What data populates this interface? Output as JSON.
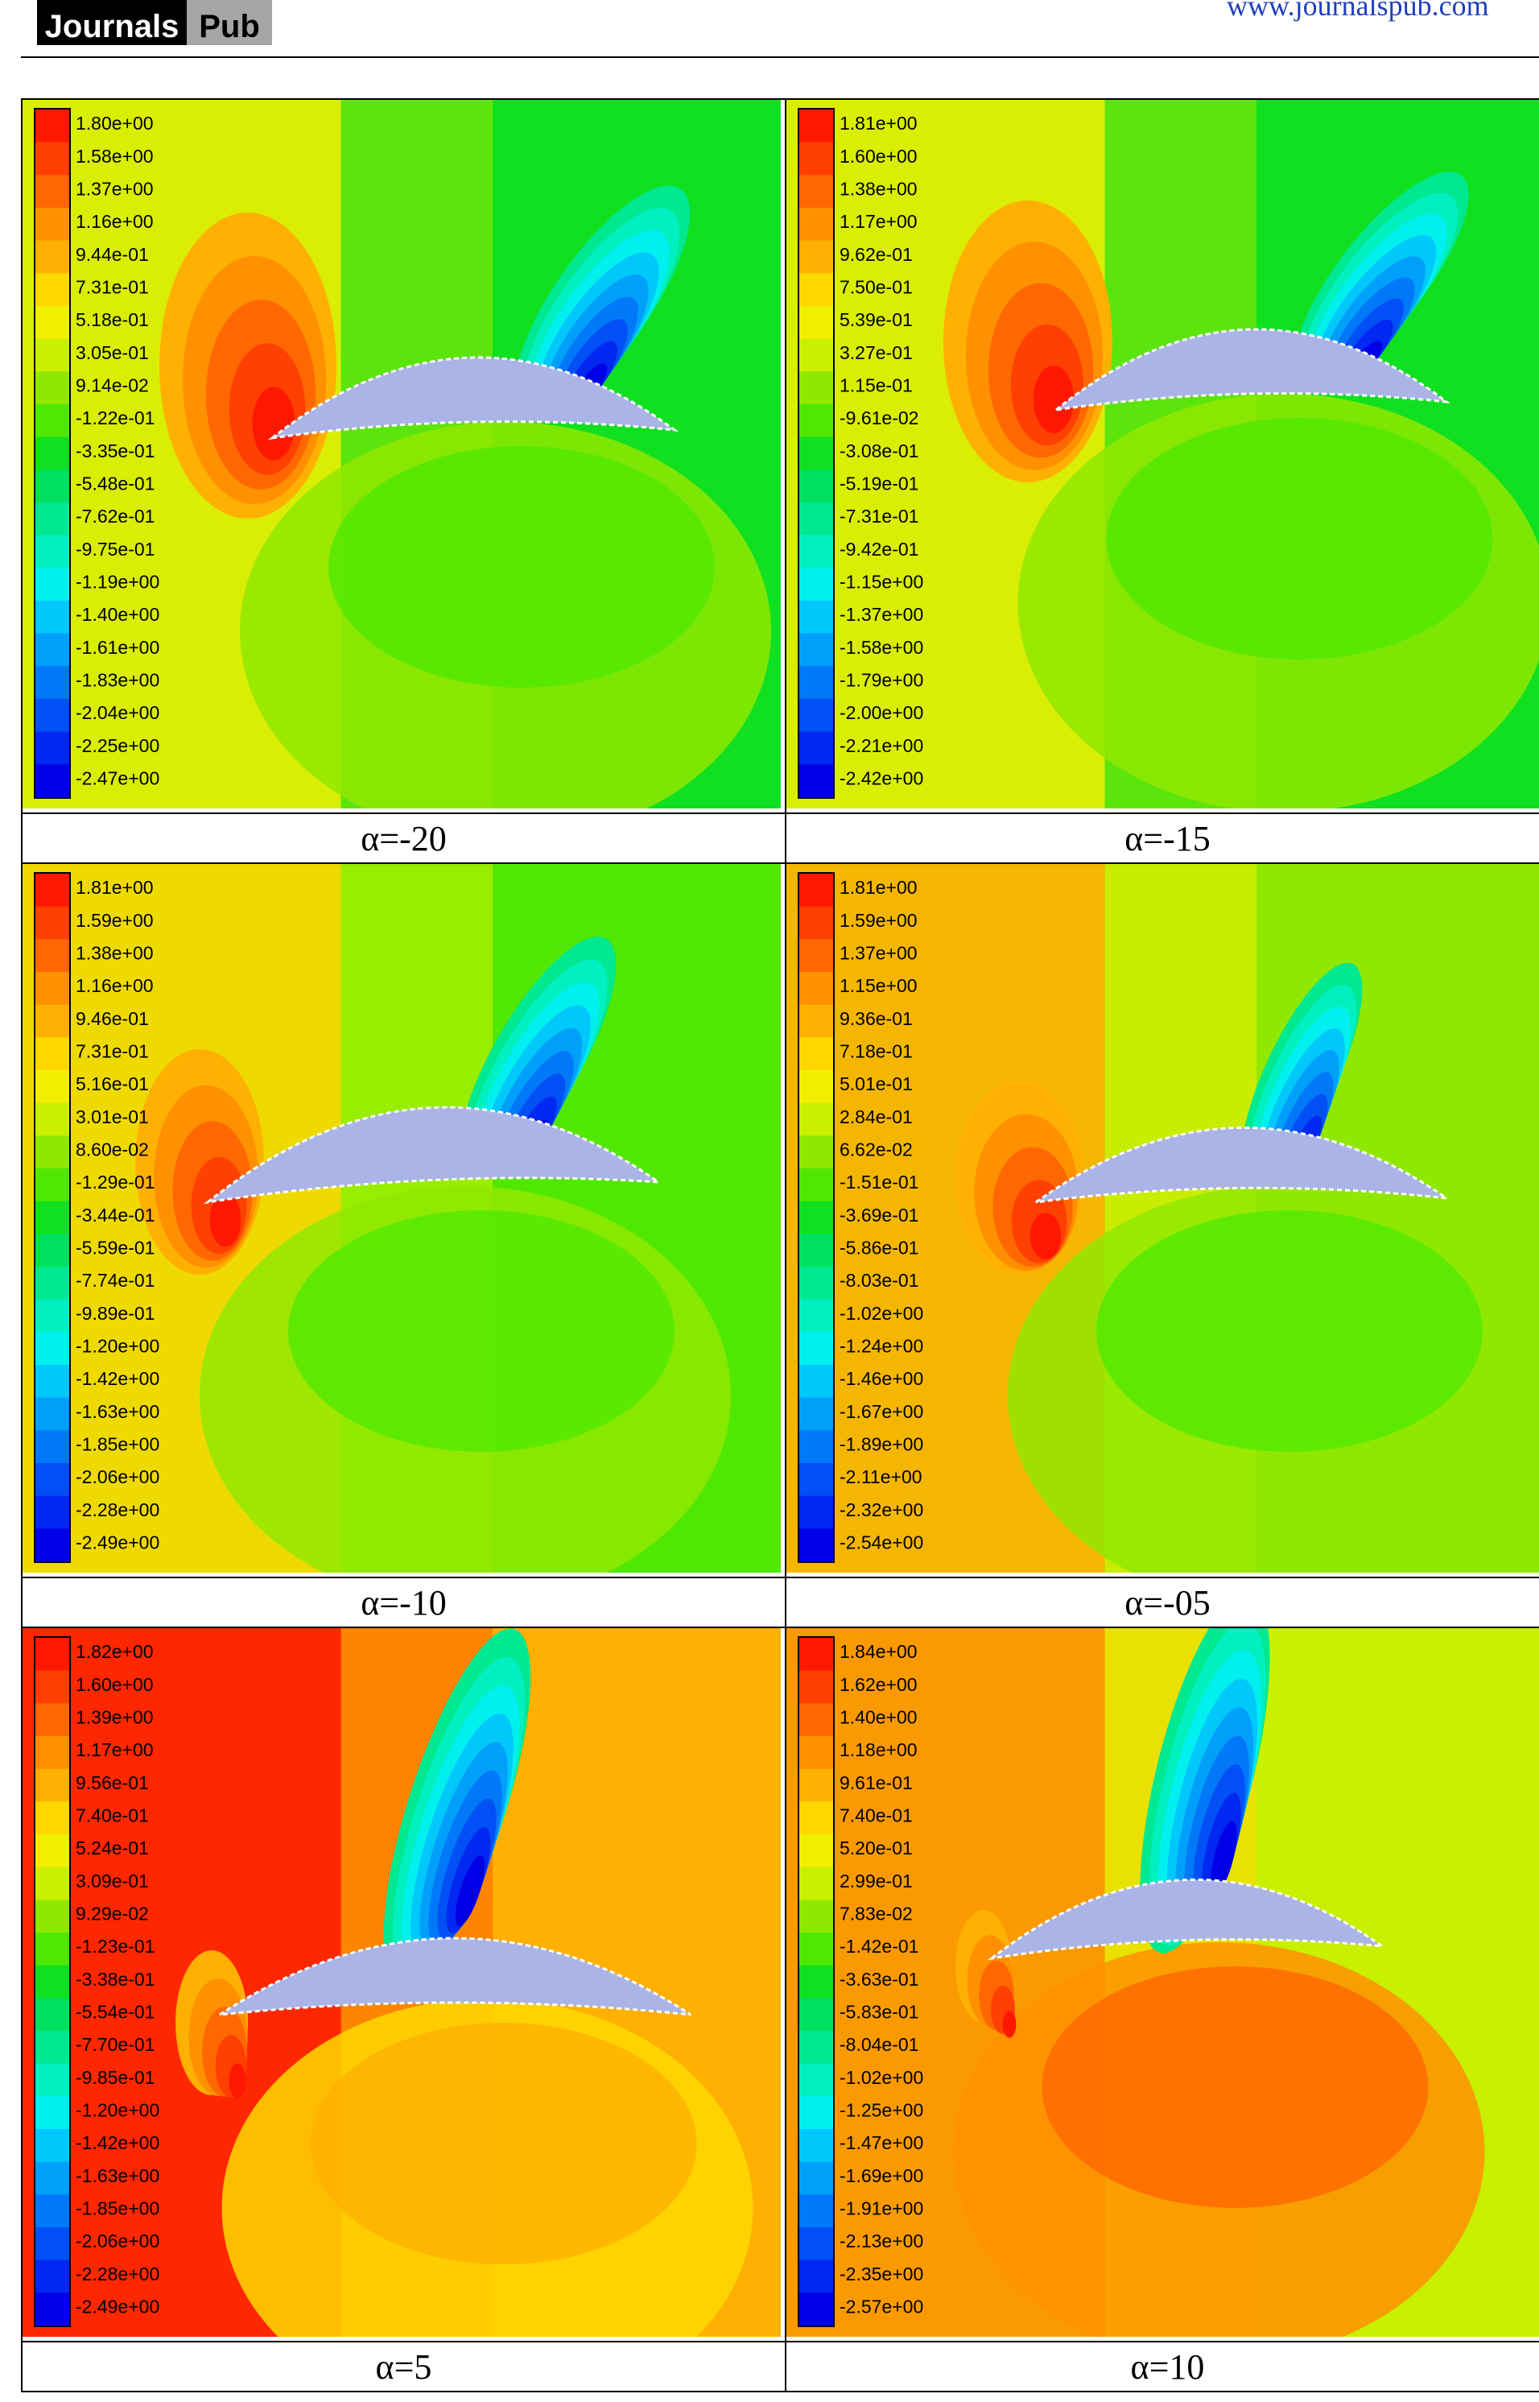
{
  "header": {
    "logo_left": "Journals",
    "logo_right": "Pub",
    "site": "www.journalspub.com"
  },
  "colorscale": [
    "#0000e8",
    "#0028f0",
    "#0050f5",
    "#0078f8",
    "#00a0fa",
    "#00c8fa",
    "#00f0f0",
    "#00f0c0",
    "#00e890",
    "#00e060",
    "#10e020",
    "#50e800",
    "#90e800",
    "#c8f000",
    "#f0f000",
    "#ffd800",
    "#ffb000",
    "#ff9000",
    "#ff6800",
    "#ff4000",
    "#ff1800"
  ],
  "airfoil_color": "#aab4e6",
  "panels": [
    {
      "caption": "α=-20",
      "legend": [
        "1.80e+00",
        "1.58e+00",
        "1.37e+00",
        "1.16e+00",
        "9.44e-01",
        "7.31e-01",
        "5.18e-01",
        "3.05e-01",
        "9.14e-02",
        "-1.22e-01",
        "-3.35e-01",
        "-5.48e-01",
        "-7.62e-01",
        "-9.75e-01",
        "-1.19e+00",
        "-1.40e+00",
        "-1.61e+00",
        "-1.83e+00",
        "-2.04e+00",
        "-2.25e+00",
        "-2.47e+00"
      ]
    },
    {
      "caption": "α=-15",
      "legend": [
        "1.81e+00",
        "1.60e+00",
        "1.38e+00",
        "1.17e+00",
        "9.62e-01",
        "7.50e-01",
        "5.39e-01",
        "3.27e-01",
        "1.15e-01",
        "-9.61e-02",
        "-3.08e-01",
        "-5.19e-01",
        "-7.31e-01",
        "-9.42e-01",
        "-1.15e+00",
        "-1.37e+00",
        "-1.58e+00",
        "-1.79e+00",
        "-2.00e+00",
        "-2.21e+00",
        "-2.42e+00"
      ]
    },
    {
      "caption": "α=-10",
      "legend": [
        "1.81e+00",
        "1.59e+00",
        "1.38e+00",
        "1.16e+00",
        "9.46e-01",
        "7.31e-01",
        "5.16e-01",
        "3.01e-01",
        "8.60e-02",
        "-1.29e-01",
        "-3.44e-01",
        "-5.59e-01",
        "-7.74e-01",
        "-9.89e-01",
        "-1.20e+00",
        "-1.42e+00",
        "-1.63e+00",
        "-1.85e+00",
        "-2.06e+00",
        "-2.28e+00",
        "-2.49e+00"
      ]
    },
    {
      "caption": "α=-05",
      "legend": [
        "1.81e+00",
        "1.59e+00",
        "1.37e+00",
        "1.15e+00",
        "9.36e-01",
        "7.18e-01",
        "5.01e-01",
        "2.84e-01",
        "6.62e-02",
        "-1.51e-01",
        "-3.69e-01",
        "-5.86e-01",
        "-8.03e-01",
        "-1.02e+00",
        "-1.24e+00",
        "-1.46e+00",
        "-1.67e+00",
        "-1.89e+00",
        "-2.11e+00",
        "-2.32e+00",
        "-2.54e+00"
      ]
    },
    {
      "caption": "α=5",
      "legend": [
        "1.82e+00",
        "1.60e+00",
        "1.39e+00",
        "1.17e+00",
        "9.56e-01",
        "7.40e-01",
        "5.24e-01",
        "3.09e-01",
        "9.29e-02",
        "-1.23e-01",
        "-3.38e-01",
        "-5.54e-01",
        "-7.70e-01",
        "-9.85e-01",
        "-1.20e+00",
        "-1.42e+00",
        "-1.63e+00",
        "-1.85e+00",
        "-2.06e+00",
        "-2.28e+00",
        "-2.49e+00"
      ]
    },
    {
      "caption": "α=10",
      "legend": [
        "1.84e+00",
        "1.62e+00",
        "1.40e+00",
        "1.18e+00",
        "9.61e-01",
        "7.40e-01",
        "5.20e-01",
        "2.99e-01",
        "7.83e-02",
        "-1.42e-01",
        "-3.63e-01",
        "-5.83e-01",
        "-8.04e-01",
        "-1.02e+00",
        "-1.25e+00",
        "-1.47e+00",
        "-1.69e+00",
        "-1.91e+00",
        "-2.13e+00",
        "-2.35e+00",
        "-2.57e+00"
      ]
    }
  ]
}
